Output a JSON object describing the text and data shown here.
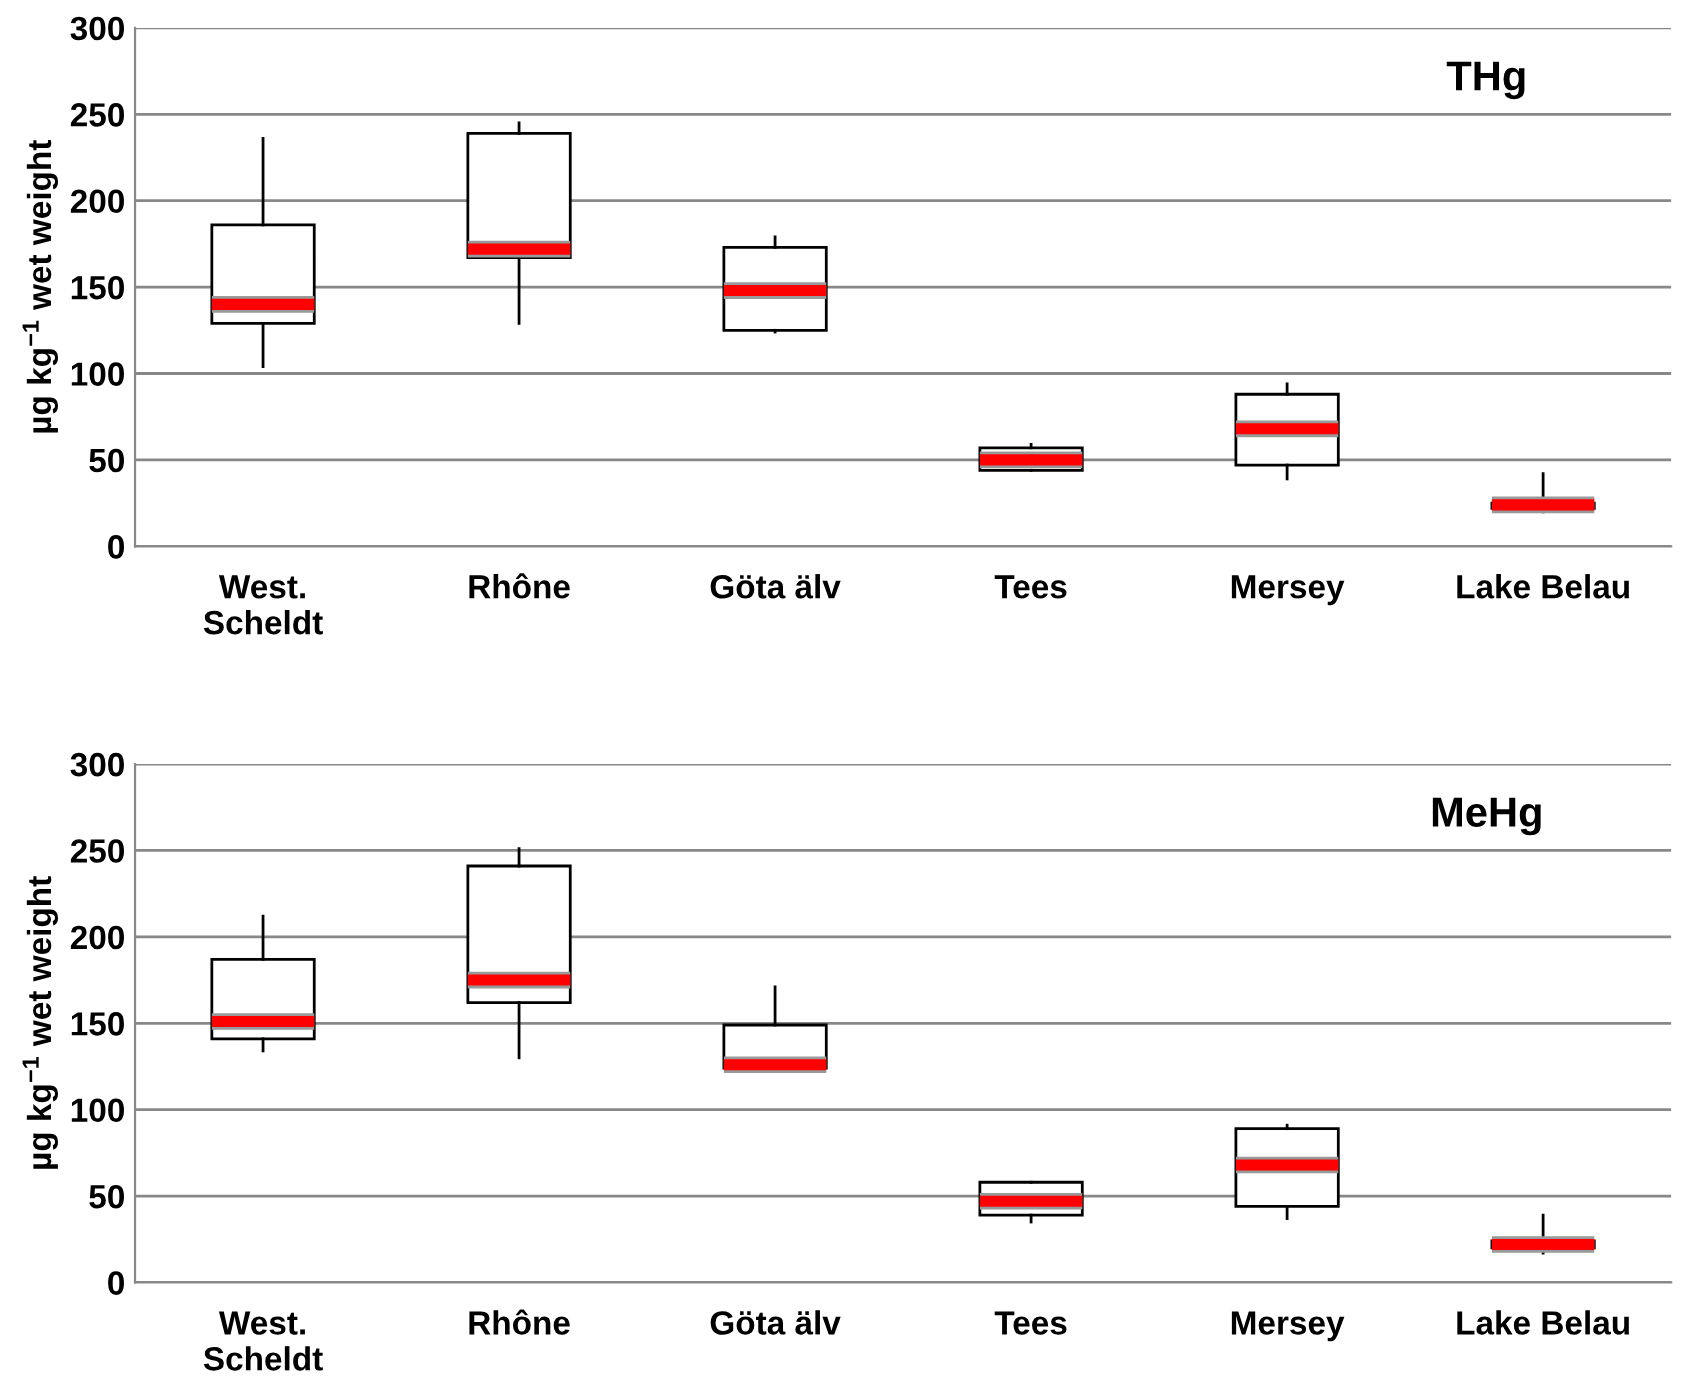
{
  "chart_data": [
    {
      "type": "box",
      "ylabel": "µg kg$^{−1}$ wet weight",
      "annotations": [
        "THg"
      ],
      "categories": [
        "West.\nScheldt",
        "Rhône",
        "Göta älv",
        "Tees",
        "Mersey",
        "Lake Belau"
      ],
      "ylim": [
        0,
        300
      ],
      "yticks": [
        0,
        50,
        100,
        150,
        200,
        250,
        300
      ],
      "grid": "y",
      "color": "#ffffff",
      "boxes": [
        {
          "low": 104,
          "q1": 129,
          "median": 140,
          "q3": 186,
          "high": 236
        },
        {
          "low": 129,
          "q1": 167,
          "median": 172,
          "q3": 239,
          "high": 245
        },
        {
          "low": 124,
          "q1": 125,
          "median": 148,
          "q3": 173,
          "high": 179
        },
        {
          "low": 44,
          "q1": 44,
          "median": 50,
          "q3": 57,
          "high": 59
        },
        {
          "low": 39,
          "q1": 47,
          "median": 68,
          "q3": 88,
          "high": 94
        },
        {
          "low": 20,
          "q1": 22,
          "median": 24,
          "q3": 25,
          "high": 42
        }
      ]
    },
    {
      "type": "box",
      "ylabel": "µg kg$^{−1}$ wet weight",
      "annotations": [
        "MeHg"
      ],
      "categories": [
        "West.\nScheldt",
        "Rhône",
        "Göta älv",
        "Tees",
        "Mersey",
        "Lake Belau"
      ],
      "ylim": [
        0,
        300
      ],
      "yticks": [
        0,
        50,
        100,
        150,
        200,
        250,
        300
      ],
      "grid": "y",
      "color": "#ffffff",
      "boxes": [
        {
          "low": 134,
          "q1": 141,
          "median": 151,
          "q3": 187,
          "high": 212
        },
        {
          "low": 130,
          "q1": 162,
          "median": 175,
          "q3": 241,
          "high": 251
        },
        {
          "low": 124,
          "q1": 124,
          "median": 126,
          "q3": 149,
          "high": 171
        },
        {
          "low": 35,
          "q1": 39,
          "median": 47,
          "q3": 58,
          "high": 58
        },
        {
          "low": 37,
          "q1": 44,
          "median": 68,
          "q3": 89,
          "high": 91
        },
        {
          "low": 17,
          "q1": 20,
          "median": 22,
          "q3": 24,
          "high": 39
        }
      ]
    }
  ]
}
